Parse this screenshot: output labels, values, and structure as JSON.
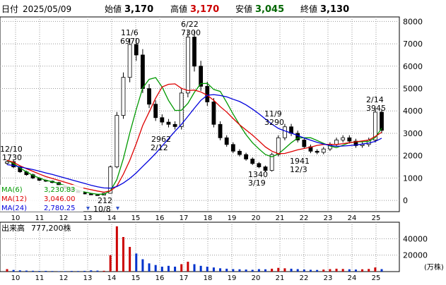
{
  "header": {
    "date_label": "日付",
    "date": "2025/05/09",
    "open_label": "始値",
    "open": "3,170",
    "high_label": "高値",
    "high": "3,170",
    "low_label": "安値",
    "low": "3,045",
    "close_label": "終値",
    "close": "3,130"
  },
  "colors": {
    "up": "#cc0000",
    "down": "#006600",
    "ma6": "#009900",
    "ma12": "#dd0000",
    "ma24": "#0000dd",
    "grid": "#999999"
  },
  "price_axis": {
    "ticks": [
      "8000",
      "7000",
      "6000",
      "5000",
      "4000",
      "3000",
      "2000",
      "1000",
      "0"
    ],
    "ylim": [
      -500,
      8200
    ]
  },
  "volume_axis": {
    "ticks": [
      "40000",
      "20000"
    ],
    "unit": "(万株)",
    "ylim": [
      0,
      60000
    ]
  },
  "x_axis": {
    "labels": [
      "10",
      "11",
      "12",
      "13",
      "14",
      "15",
      "16",
      "17",
      "18",
      "19",
      "20",
      "21",
      "22",
      "23",
      "24",
      "25"
    ]
  },
  "legend": {
    "ma6_label": "MA(6)",
    "ma6_value": "3,230.83",
    "ma12_label": "MA(12)",
    "ma12_value": "3,046.00",
    "ma24_label": "MA(24)",
    "ma24_value": "2,780.25"
  },
  "volume_panel": {
    "label": "出来高",
    "value": "777,200株"
  },
  "annotations": [
    {
      "top": "12/10",
      "bottom": "1730"
    },
    {
      "top": "11/6",
      "bottom": "6970"
    },
    {
      "top": "6/22",
      "bottom": "7300"
    },
    {
      "top": "2962",
      "bottom": "2/12"
    },
    {
      "top": "212",
      "bottom": "10/8"
    },
    {
      "top": "11/9",
      "bottom": "3290"
    },
    {
      "top": "1340",
      "bottom": "3/19"
    },
    {
      "top": "1941",
      "bottom": "12/3"
    },
    {
      "top": "2/14",
      "bottom": "3945"
    }
  ],
  "chart_data": {
    "type": "line",
    "title": "",
    "xlabel": "",
    "ylabel": "",
    "x_labels": [
      "10",
      "11",
      "12",
      "13",
      "14",
      "15",
      "16",
      "17",
      "18",
      "19",
      "20",
      "21",
      "22",
      "23",
      "24",
      "25"
    ],
    "close": [
      1730,
      1500,
      1280,
      1150,
      1000,
      900,
      860,
      800,
      650,
      540,
      430,
      350,
      290,
      250,
      240,
      320,
      1500,
      3800,
      5500,
      6970,
      6500,
      5000,
      4300,
      3700,
      3500,
      3400,
      3300,
      4800,
      7300,
      6000,
      5100,
      4400,
      3400,
      2800,
      2500,
      2200,
      2050,
      1850,
      1650,
      1500,
      1340,
      2050,
      2800,
      3290,
      3000,
      2700,
      2400,
      2200,
      2150,
      2300,
      2500,
      2700,
      2800,
      2650,
      2450,
      2500,
      2700,
      3945,
      3130
    ],
    "volume": [
      3000,
      2000,
      1500,
      1200,
      1000,
      800,
      900,
      700,
      500,
      600,
      800,
      700,
      900,
      1500,
      1200,
      1000,
      20000,
      55000,
      42000,
      30000,
      22000,
      15000,
      10000,
      8000,
      6000,
      7000,
      6000,
      9000,
      12000,
      9000,
      7000,
      6000,
      5000,
      4000,
      3500,
      3000,
      2800,
      2500,
      2200,
      3000,
      2800,
      3500,
      4500,
      4000,
      3500,
      3000,
      2500,
      2200,
      2000,
      2500,
      3000,
      3500,
      3200,
      2800,
      2500,
      2800,
      3200,
      5000,
      3000
    ],
    "series": [
      {
        "name": "MA(6)",
        "values": [
          1800,
          1650,
          1450,
          1280,
          1120,
          1000,
          900,
          840,
          760,
          660,
          560,
          460,
          380,
          320,
          280,
          280,
          430,
          930,
          1860,
          3010,
          4070,
          5030,
          5410,
          5490,
          5070,
          4470,
          4020,
          4030,
          4340,
          4830,
          5220,
          5230,
          4960,
          4870,
          4380,
          3860,
          3380,
          2940,
          2580,
          2300,
          2050,
          1950,
          2080,
          2320,
          2580,
          2790,
          2800,
          2800,
          2680,
          2550,
          2430,
          2360,
          2470,
          2580,
          2620,
          2620,
          2640,
          2810,
          3230
        ]
      },
      {
        "name": "MA(12)",
        "values": [
          1800,
          1700,
          1550,
          1420,
          1300,
          1180,
          1070,
          980,
          900,
          810,
          720,
          620,
          540,
          480,
          420,
          370,
          430,
          640,
          1170,
          1790,
          2540,
          3350,
          3950,
          4570,
          5070,
          5190,
          5210,
          5010,
          4910,
          4930,
          4850,
          4700,
          4470,
          4190,
          3950,
          3660,
          3380,
          3150,
          2920,
          2660,
          2390,
          2200,
          2090,
          2100,
          2180,
          2260,
          2320,
          2380,
          2460,
          2500,
          2510,
          2500,
          2540,
          2580,
          2620,
          2660,
          2700,
          2860,
          3046
        ]
      },
      {
        "name": "MA(24)",
        "values": [
          1600,
          1560,
          1500,
          1440,
          1380,
          1310,
          1230,
          1160,
          1080,
          1000,
          920,
          840,
          760,
          680,
          610,
          560,
          550,
          620,
          780,
          980,
          1230,
          1520,
          1800,
          2100,
          2430,
          2760,
          3090,
          3400,
          3760,
          4120,
          4470,
          4700,
          4730,
          4690,
          4630,
          4520,
          4420,
          4270,
          4080,
          3870,
          3640,
          3410,
          3220,
          3110,
          3010,
          2900,
          2790,
          2690,
          2600,
          2520,
          2460,
          2420,
          2430,
          2450,
          2480,
          2520,
          2560,
          2640,
          2780
        ]
      }
    ],
    "grid": true,
    "legend_position": "left-bottom"
  }
}
